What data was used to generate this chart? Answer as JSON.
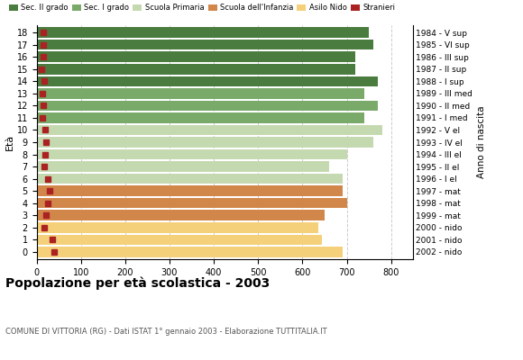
{
  "ages": [
    18,
    17,
    16,
    15,
    14,
    13,
    12,
    11,
    10,
    9,
    8,
    7,
    6,
    5,
    4,
    3,
    2,
    1,
    0
  ],
  "values": [
    750,
    760,
    720,
    720,
    770,
    740,
    770,
    740,
    780,
    760,
    700,
    660,
    690,
    690,
    700,
    650,
    635,
    645,
    690
  ],
  "stranieri": [
    15,
    15,
    15,
    12,
    18,
    14,
    16,
    14,
    20,
    22,
    20,
    18,
    25,
    30,
    25,
    22,
    18,
    35,
    40
  ],
  "year_labels": [
    "1984 - V sup",
    "1985 - VI sup",
    "1986 - III sup",
    "1987 - II sup",
    "1988 - I sup",
    "1989 - III med",
    "1990 - II med",
    "1991 - I med",
    "1992 - V el",
    "1993 - IV el",
    "1994 - III el",
    "1995 - II el",
    "1996 - I el",
    "1997 - mat",
    "1998 - mat",
    "1999 - mat",
    "2000 - nido",
    "2001 - nido",
    "2002 - nido"
  ],
  "bar_colors": {
    "18": "#4a7c40",
    "17": "#4a7c40",
    "16": "#4a7c40",
    "15": "#4a7c40",
    "14": "#4a7c40",
    "13": "#7aaa6a",
    "12": "#7aaa6a",
    "11": "#7aaa6a",
    "10": "#c5d9b0",
    "9": "#c5d9b0",
    "8": "#c5d9b0",
    "7": "#c5d9b0",
    "6": "#c5d9b0",
    "5": "#d2874a",
    "4": "#d2874a",
    "3": "#d2874a",
    "2": "#f5d07a",
    "1": "#f5d07a",
    "0": "#f5d07a"
  },
  "legend_labels": [
    "Sec. II grado",
    "Sec. I grado",
    "Scuola Primaria",
    "Scuola dell'Infanzia",
    "Asilo Nido",
    "Stranieri"
  ],
  "legend_colors": [
    "#4a7c40",
    "#7aaa6a",
    "#c5d9b0",
    "#d2874a",
    "#f5d07a",
    "#aa2222"
  ],
  "title": "Popolazione per età scolastica - 2003",
  "subtitle": "COMUNE DI VITTORIA (RG) - Dati ISTAT 1° gennaio 2003 - Elaborazione TUTTITALIA.IT",
  "ylabel": "Età",
  "ylabel_right": "Anno di nascita",
  "xlim": [
    0,
    850
  ],
  "xticks": [
    0,
    100,
    200,
    300,
    400,
    500,
    600,
    700,
    800
  ],
  "grid_color": "#cccccc",
  "stranieri_color": "#aa2222",
  "bar_height": 0.85
}
